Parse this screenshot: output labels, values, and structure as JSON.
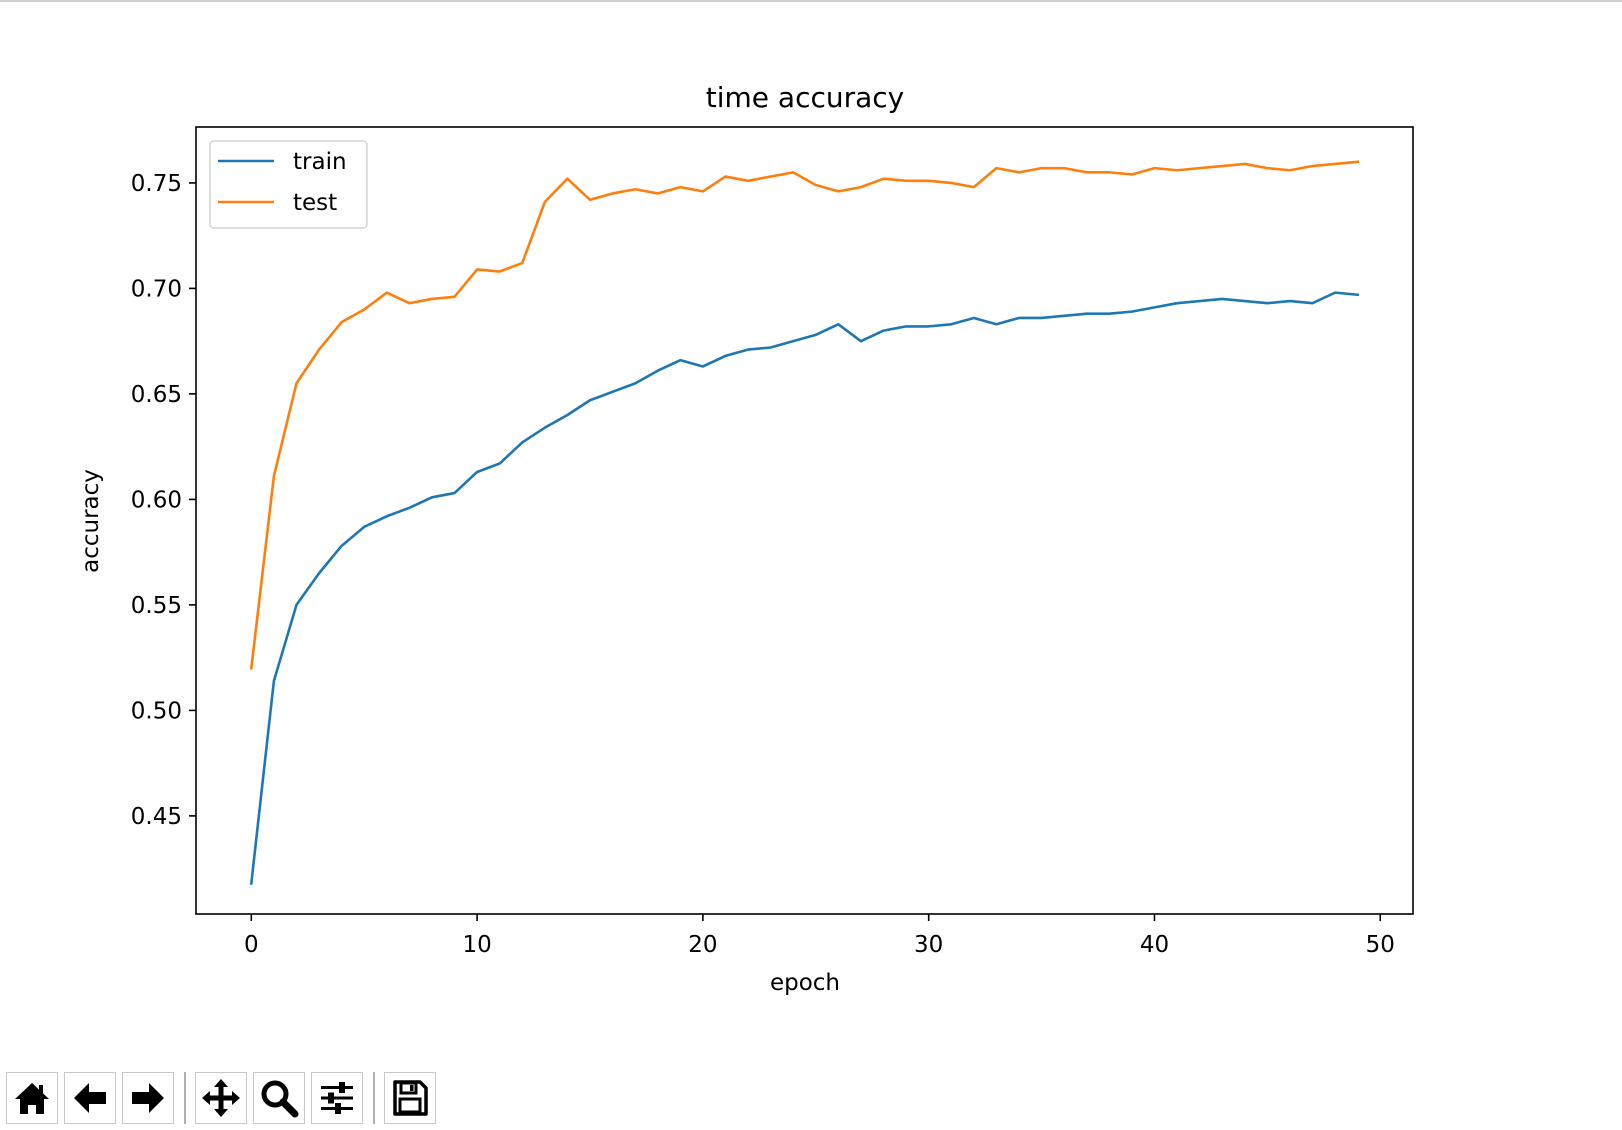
{
  "chart_data": {
    "type": "line",
    "title": "time accuracy",
    "xlabel": "epoch",
    "ylabel": "accuracy",
    "xlim": [
      -2.45,
      51.45
    ],
    "ylim": [
      0.4035,
      0.7765
    ],
    "xticks": [
      0,
      10,
      20,
      30,
      40,
      50
    ],
    "yticks": [
      0.45,
      0.5,
      0.55,
      0.6,
      0.65,
      0.7,
      0.75
    ],
    "grid": false,
    "legend_position": "upper left",
    "x": [
      0,
      1,
      2,
      3,
      4,
      5,
      6,
      7,
      8,
      9,
      10,
      11,
      12,
      13,
      14,
      15,
      16,
      17,
      18,
      19,
      20,
      21,
      22,
      23,
      24,
      25,
      26,
      27,
      28,
      29,
      30,
      31,
      32,
      33,
      34,
      35,
      36,
      37,
      38,
      39,
      40,
      41,
      42,
      43,
      44,
      45,
      46,
      47,
      48,
      49
    ],
    "series": [
      {
        "name": "train",
        "color": "#1f77b4",
        "values": [
          0.418,
          0.514,
          0.55,
          0.565,
          0.578,
          0.587,
          0.592,
          0.596,
          0.601,
          0.603,
          0.613,
          0.617,
          0.627,
          0.634,
          0.64,
          0.647,
          0.651,
          0.655,
          0.661,
          0.666,
          0.663,
          0.668,
          0.671,
          0.672,
          0.675,
          0.678,
          0.683,
          0.675,
          0.68,
          0.682,
          0.682,
          0.683,
          0.686,
          0.683,
          0.686,
          0.686,
          0.687,
          0.688,
          0.688,
          0.689,
          0.691,
          0.693,
          0.694,
          0.695,
          0.694,
          0.693,
          0.694,
          0.693,
          0.698,
          0.697
        ]
      },
      {
        "name": "test",
        "color": "#ff7f0e",
        "values": [
          0.52,
          0.611,
          0.655,
          0.671,
          0.684,
          0.69,
          0.698,
          0.693,
          0.695,
          0.696,
          0.709,
          0.708,
          0.712,
          0.741,
          0.752,
          0.742,
          0.745,
          0.747,
          0.745,
          0.748,
          0.746,
          0.753,
          0.751,
          0.753,
          0.755,
          0.749,
          0.746,
          0.748,
          0.752,
          0.751,
          0.751,
          0.75,
          0.748,
          0.757,
          0.755,
          0.757,
          0.757,
          0.755,
          0.755,
          0.754,
          0.757,
          0.756,
          0.757,
          0.758,
          0.759,
          0.757,
          0.756,
          0.758,
          0.759,
          0.76
        ]
      }
    ]
  },
  "toolbar": {
    "buttons": [
      {
        "name": "home-icon",
        "action": "home"
      },
      {
        "name": "back-arrow-icon",
        "action": "back"
      },
      {
        "name": "forward-arrow-icon",
        "action": "forward"
      },
      {
        "name": "pan-icon",
        "action": "pan"
      },
      {
        "name": "zoom-icon",
        "action": "zoom"
      },
      {
        "name": "configure-subplots-icon",
        "action": "configure"
      },
      {
        "name": "save-icon",
        "action": "save"
      }
    ]
  }
}
